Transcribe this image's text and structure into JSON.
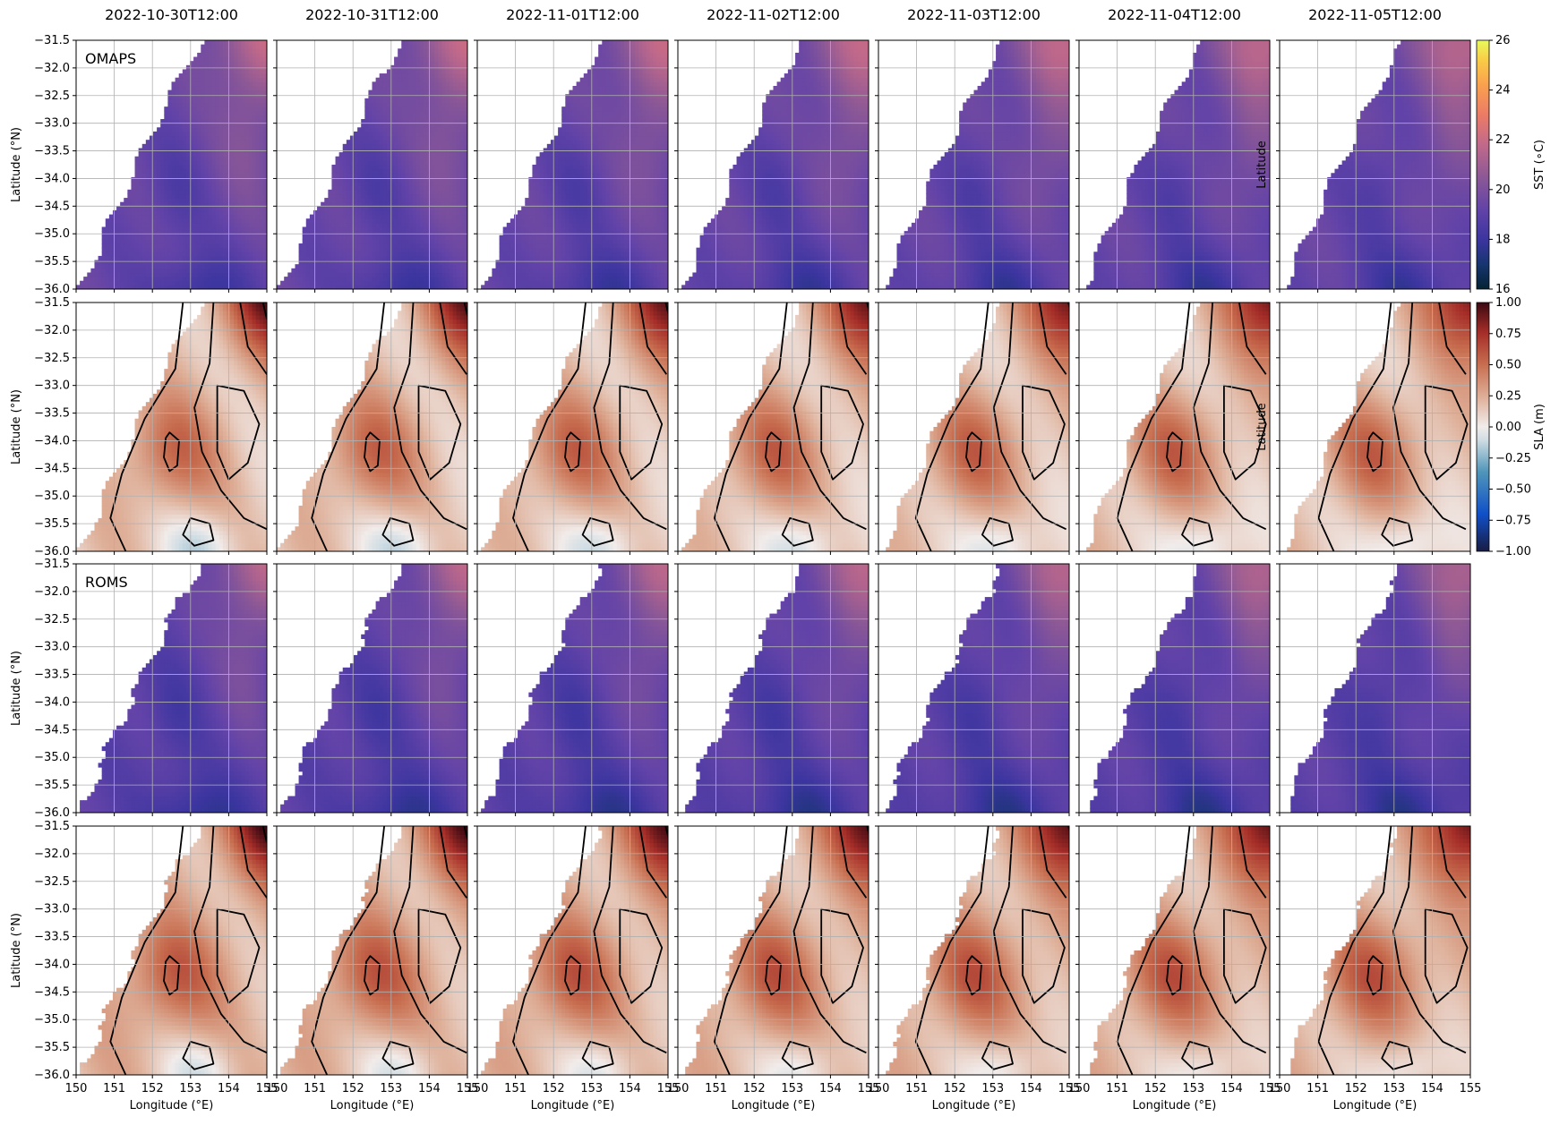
{
  "chart_data": {
    "type": "heatmap",
    "layout": "4 rows x 7 columns of map panels",
    "column_titles": [
      "2022-10-30T12:00",
      "2022-10-31T12:00",
      "2022-11-01T12:00",
      "2022-11-02T12:00",
      "2022-11-03T12:00",
      "2022-11-04T12:00",
      "2022-11-05T12:00"
    ],
    "rows": [
      {
        "model": "OMAPS",
        "field": "SST",
        "show_model_label": true
      },
      {
        "model": "OMAPS",
        "field": "SLA",
        "show_model_label": false
      },
      {
        "model": "ROMS",
        "field": "SST",
        "show_model_label": true
      },
      {
        "model": "ROMS",
        "field": "SLA",
        "show_model_label": false
      }
    ],
    "xlabel": "Longitude ($^\\circ$E)",
    "xlabel_display": "Longitude ($^\\circ$E)",
    "ylabel": "Latitude ($^\\circ$N)",
    "ylabel_display": "Latitude ($^\\circ$N)",
    "xlim": [
      150,
      155
    ],
    "ylim": [
      -36.0,
      -31.5
    ],
    "xticks": [
      "150",
      "151",
      "152",
      "153",
      "154",
      "155"
    ],
    "yticks": [
      "-36.0",
      "-35.5",
      "-35.0",
      "-34.5",
      "-34.0",
      "-33.5",
      "-33.0",
      "-32.5",
      "-32.0",
      "-31.5"
    ],
    "grid": true,
    "stray_axis_label": "Latitude",
    "colorbars": [
      {
        "name": "SST",
        "label": "SST ($\\circ$C)",
        "label_display": "SST (∘C)",
        "range": [
          16,
          26
        ],
        "ticks": [
          "16",
          "18",
          "20",
          "22",
          "24",
          "26"
        ],
        "colormap": "thermal"
      },
      {
        "name": "SLA",
        "label": "SLA (m)",
        "range": [
          -1.0,
          1.0
        ],
        "ticks": [
          "−1.00",
          "−0.75",
          "−0.50",
          "−0.25",
          "0.00",
          "0.25",
          "0.50",
          "0.75",
          "1.00"
        ],
        "colormap": "balance"
      }
    ],
    "sla_contour_levels_m": [
      0.0,
      0.25,
      0.5,
      0.75
    ],
    "eddy_center_approx": {
      "lon": 152.5,
      "lat": -34.2
    },
    "colors": {
      "land": "#ffffff",
      "sst_cold": "#0c3557",
      "sst_mid": "#5b3fae",
      "sst_warm": "#ee7c64",
      "sla_zero": "#f0ebe8",
      "sla_mid": "#c85a3c",
      "sla_high": "#6a0f1d",
      "contour": "#000000",
      "grid": "#b0b0b0"
    }
  }
}
